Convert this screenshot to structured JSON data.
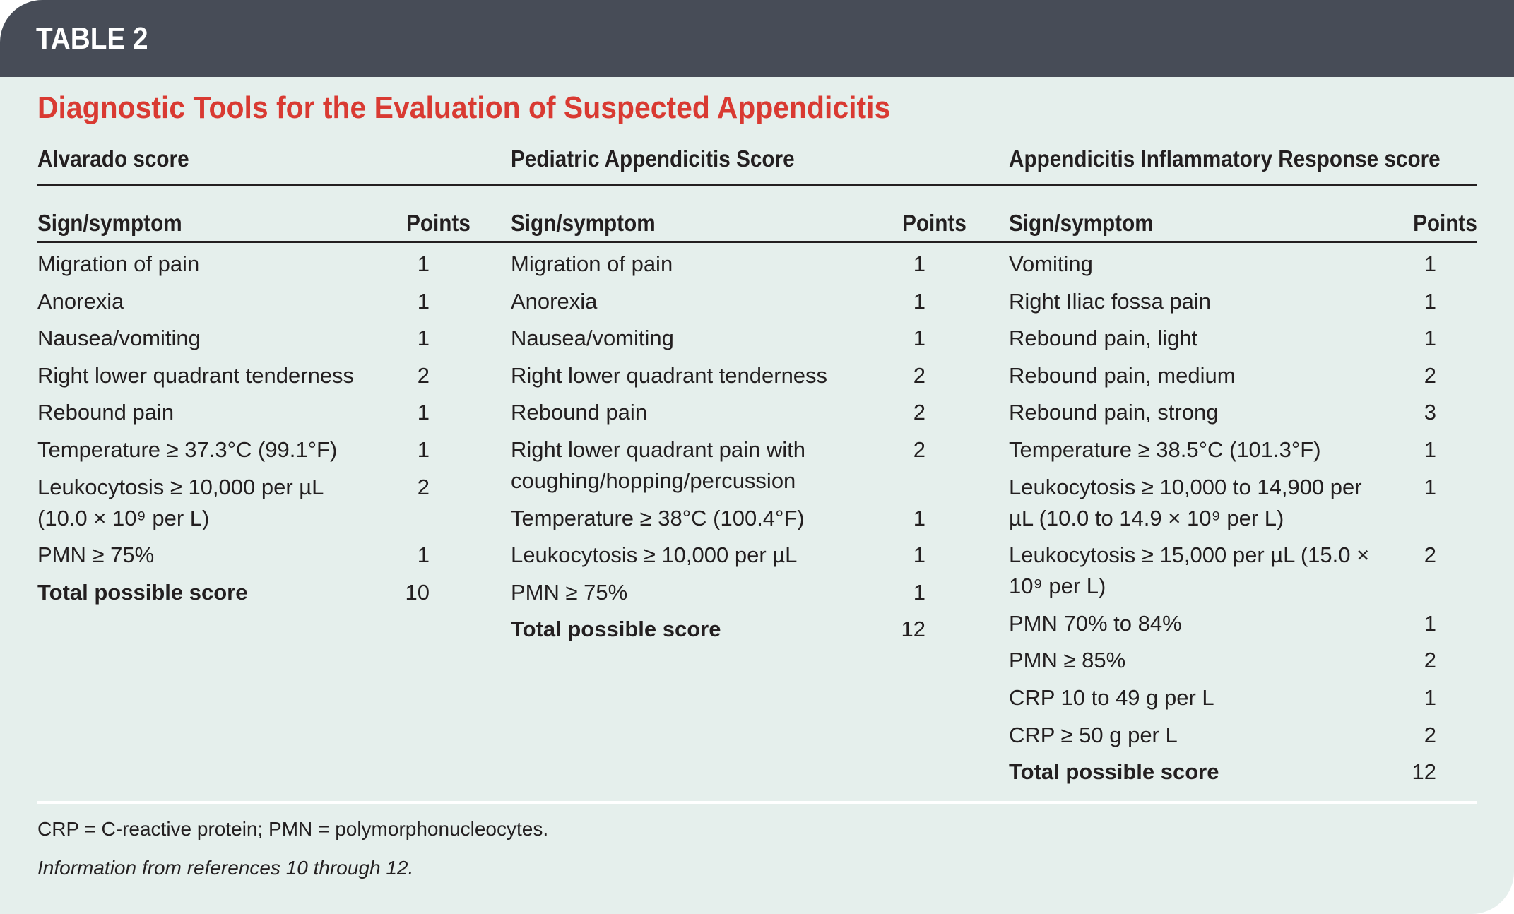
{
  "header": {
    "label": "TABLE 2"
  },
  "title": "Diagnostic Tools for the Evaluation of Suspected Appendicitis",
  "colors": {
    "header_bg": "#474c57",
    "title": "#d93a32",
    "background": "#e5efec"
  },
  "tables": [
    {
      "name": "Alvarado score",
      "col_sign": "Sign/symptom",
      "col_points": "Points",
      "rows": [
        {
          "sign": "Migration of pain",
          "points": "1"
        },
        {
          "sign": "Anorexia",
          "points": "1"
        },
        {
          "sign": "Nausea/vomiting",
          "points": "1"
        },
        {
          "sign": "Right lower quadrant tenderness",
          "points": "2"
        },
        {
          "sign": "Rebound pain",
          "points": "1"
        },
        {
          "sign": "Temperature ≥ 37.3°C (99.1°F)",
          "points": "1"
        },
        {
          "sign": "Leukocytosis ≥ 10,000 per µL (10.0 × 10⁹ per L)",
          "points": "2"
        },
        {
          "sign": "PMN ≥ 75%",
          "points": "1"
        }
      ],
      "total_label": "Total possible score",
      "total": "10"
    },
    {
      "name": "Pediatric Appendicitis Score",
      "col_sign": "Sign/symptom",
      "col_points": "Points",
      "rows": [
        {
          "sign": "Migration of pain",
          "points": "1"
        },
        {
          "sign": "Anorexia",
          "points": "1"
        },
        {
          "sign": "Nausea/vomiting",
          "points": "1"
        },
        {
          "sign": "Right lower quadrant tenderness",
          "points": "2"
        },
        {
          "sign": "Rebound pain",
          "points": "2"
        },
        {
          "sign": "Right lower quadrant pain with coughing/hopping/percussion",
          "points": "2"
        },
        {
          "sign": "Temperature ≥ 38°C (100.4°F)",
          "points": "1"
        },
        {
          "sign": "Leukocytosis ≥ 10,000 per µL",
          "points": "1"
        },
        {
          "sign": "PMN ≥ 75%",
          "points": "1"
        }
      ],
      "total_label": "Total possible score",
      "total": "12"
    },
    {
      "name": "Appendicitis Inflammatory Response score",
      "col_sign": "Sign/symptom",
      "col_points": "Points",
      "rows": [
        {
          "sign": "Vomiting",
          "points": "1"
        },
        {
          "sign": "Right Iliac fossa pain",
          "points": "1"
        },
        {
          "sign": "Rebound pain, light",
          "points": "1"
        },
        {
          "sign": "Rebound pain, medium",
          "points": "2"
        },
        {
          "sign": "Rebound pain, strong",
          "points": "3"
        },
        {
          "sign": "Temperature ≥ 38.5°C (101.3°F)",
          "points": "1"
        },
        {
          "sign": "Leukocytosis ≥ 10,000 to 14,900 per µL (10.0 to 14.9 × 10⁹ per L)",
          "points": "1"
        },
        {
          "sign": "Leukocytosis ≥ 15,000 per µL (15.0 × 10⁹ per L)",
          "points": "2"
        },
        {
          "sign": "PMN 70% to 84%",
          "points": "1"
        },
        {
          "sign": "PMN ≥ 85%",
          "points": "2"
        },
        {
          "sign": "CRP 10 to 49 g per L",
          "points": "1"
        },
        {
          "sign": "CRP ≥ 50 g per L",
          "points": "2"
        }
      ],
      "total_label": "Total possible score",
      "total": "12"
    }
  ],
  "footnotes": {
    "abbrev": "CRP = C-reactive protein; PMN = polymorphonucleocytes.",
    "source": "Information from references 10 through 12."
  }
}
